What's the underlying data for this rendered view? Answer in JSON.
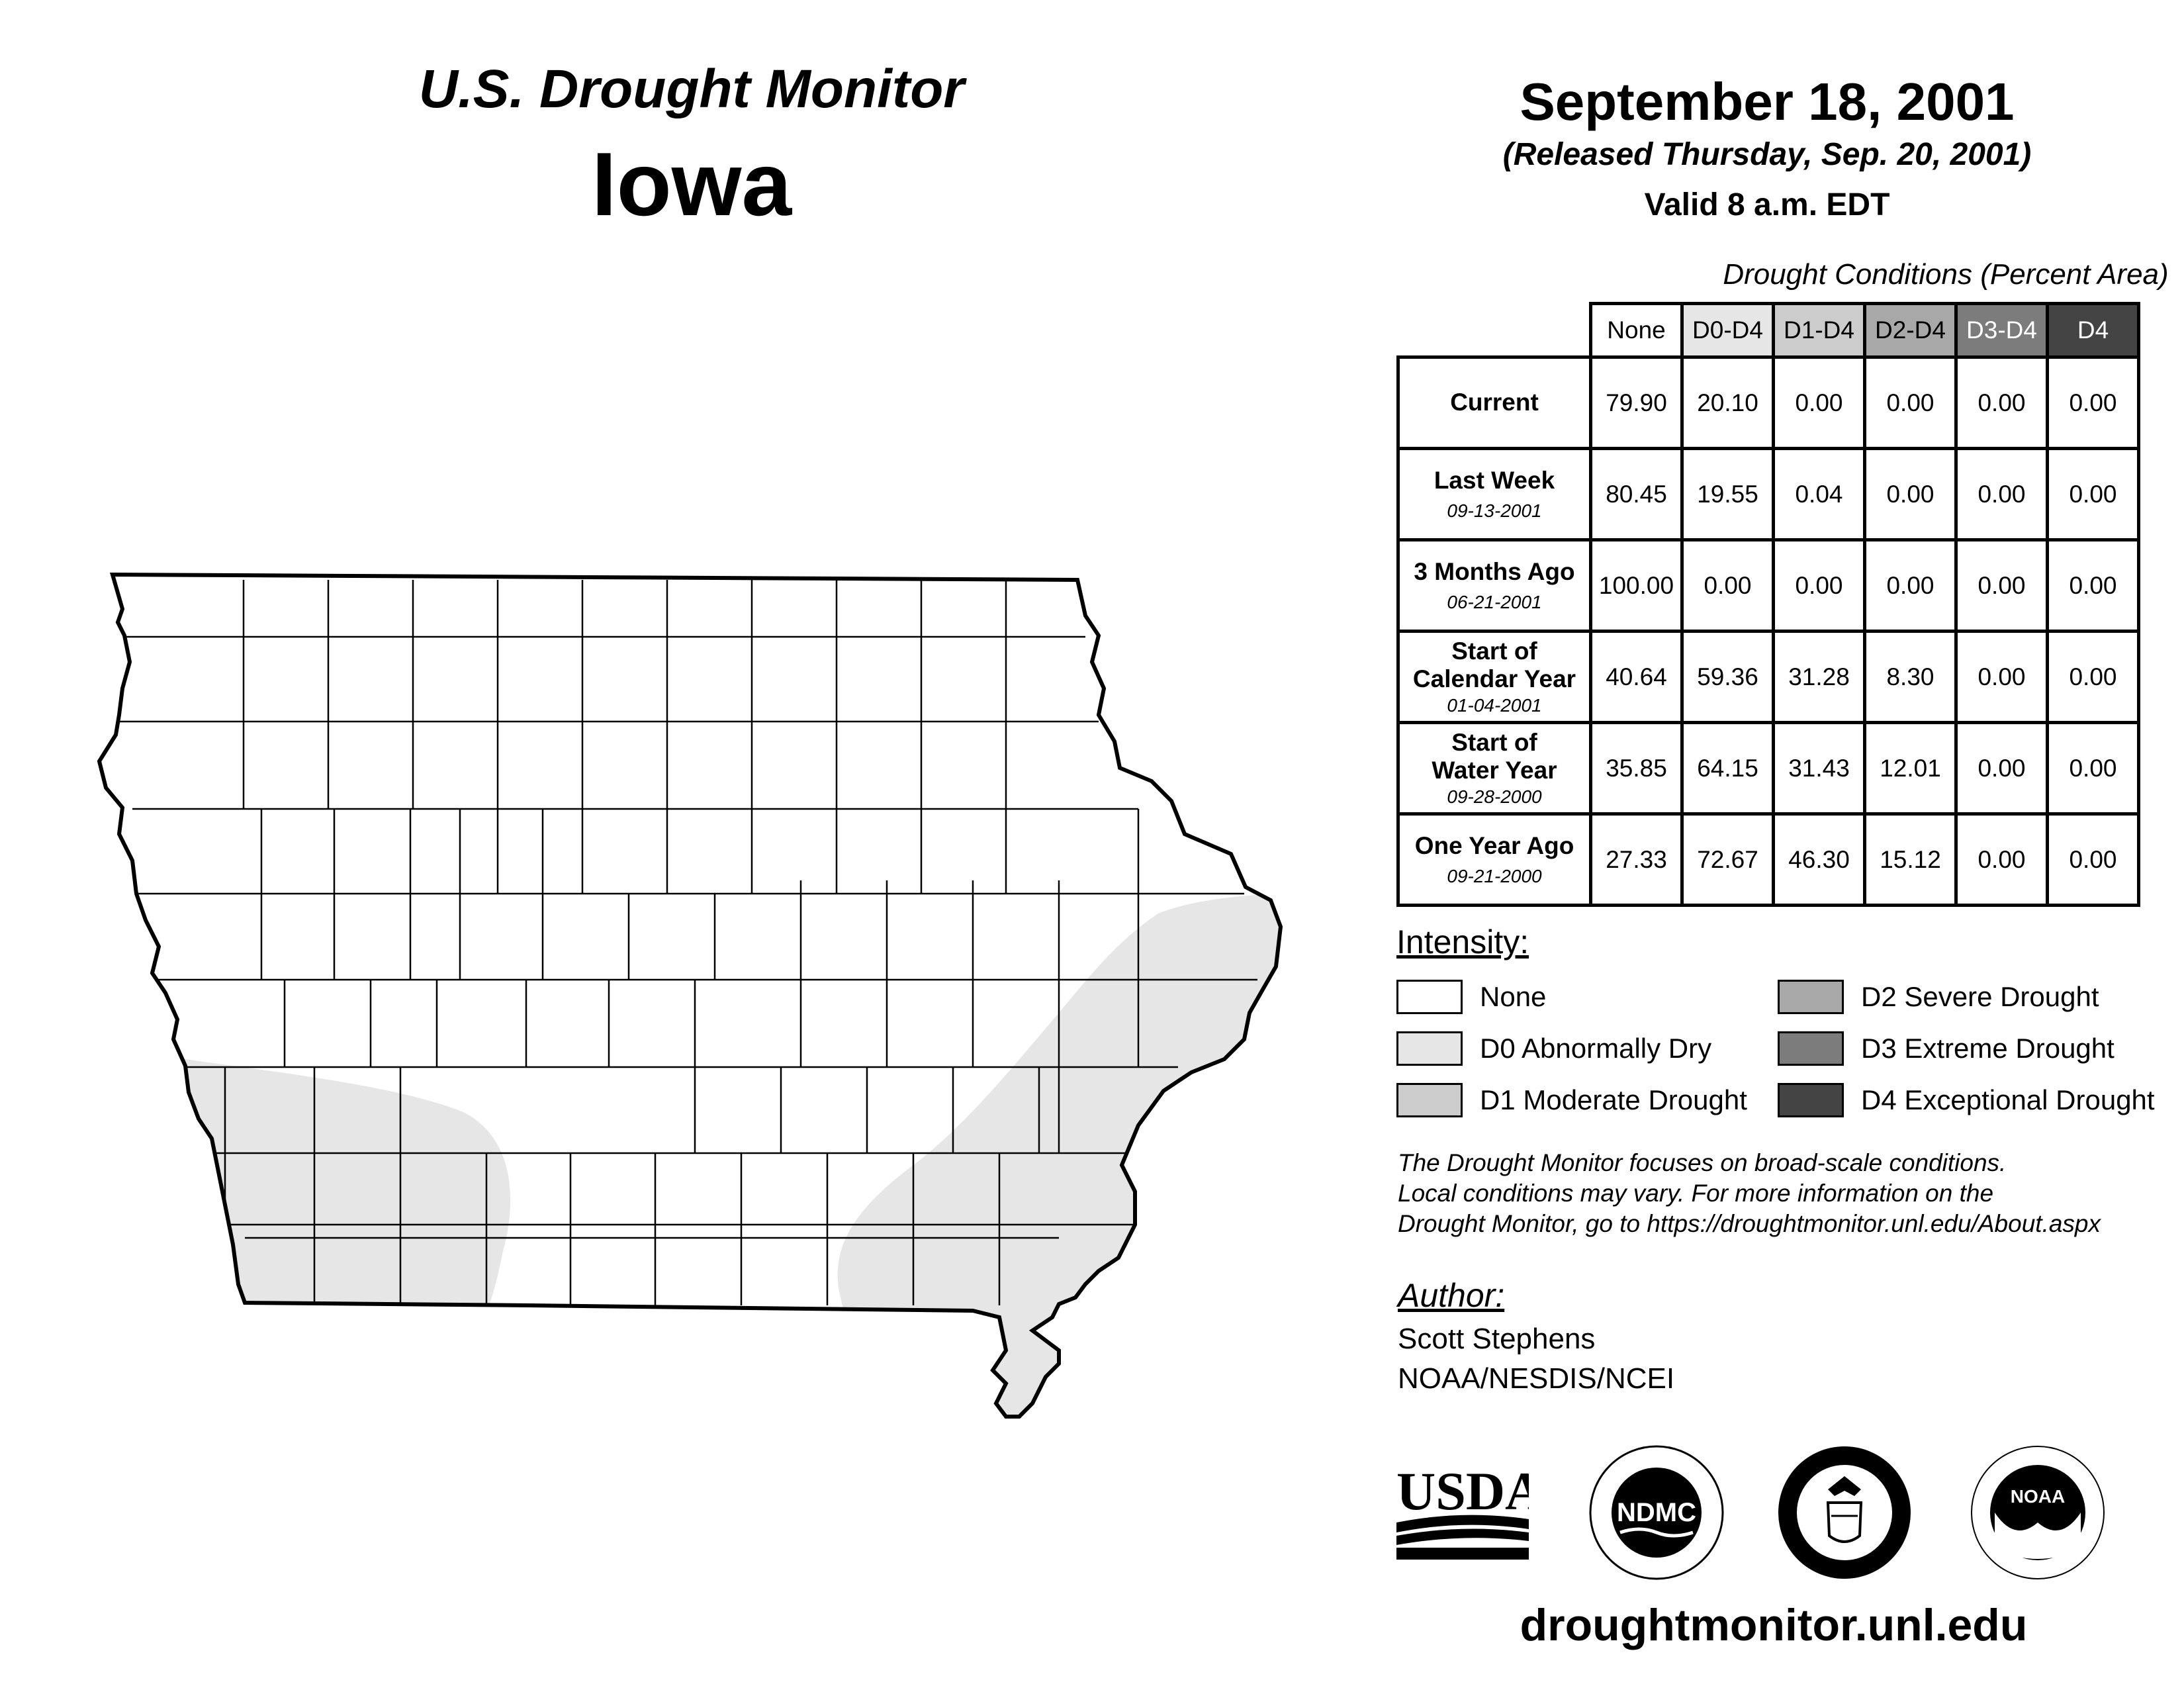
{
  "header": {
    "title": "U.S. Drought Monitor",
    "state": "Iowa"
  },
  "map_info": {
    "date": "September 18, 2001",
    "released": "(Released Thursday, Sep. 20, 2001)",
    "valid": "Valid 8 a.m. EDT"
  },
  "conditions_table": {
    "caption": "Drought Conditions (Percent Area)",
    "columns": [
      {
        "label": "None",
        "color": "#ffffff"
      },
      {
        "label": "D0-D4",
        "color": "#e6e6e6"
      },
      {
        "label": "D1-D4",
        "color": "#cccccc"
      },
      {
        "label": "D2-D4",
        "color": "#a8a8a8"
      },
      {
        "label": "D3-D4",
        "color": "#7c7c7c"
      },
      {
        "label": "D4",
        "color": "#444444"
      }
    ],
    "rows": [
      {
        "label": "Current",
        "date": "",
        "values": [
          "79.90",
          "20.10",
          "0.00",
          "0.00",
          "0.00",
          "0.00"
        ]
      },
      {
        "label": "Last Week",
        "date": "09-13-2001",
        "values": [
          "80.45",
          "19.55",
          "0.04",
          "0.00",
          "0.00",
          "0.00"
        ]
      },
      {
        "label": "3 Months Ago",
        "date": "06-21-2001",
        "values": [
          "100.00",
          "0.00",
          "0.00",
          "0.00",
          "0.00",
          "0.00"
        ]
      },
      {
        "label": "Start of Calendar Year",
        "date": "01-04-2001",
        "values": [
          "40.64",
          "59.36",
          "31.28",
          "8.30",
          "0.00",
          "0.00"
        ]
      },
      {
        "label": "Start of Water Year",
        "date": "09-28-2000",
        "values": [
          "35.85",
          "64.15",
          "31.43",
          "12.01",
          "0.00",
          "0.00"
        ]
      },
      {
        "label": "One Year Ago",
        "date": "09-21-2000",
        "values": [
          "27.33",
          "72.67",
          "46.30",
          "15.12",
          "0.00",
          "0.00"
        ]
      }
    ]
  },
  "legend": {
    "heading": "Intensity:",
    "items": [
      {
        "label": "None",
        "color": "#ffffff"
      },
      {
        "label": "D0 Abnormally Dry",
        "color": "#e6e6e6"
      },
      {
        "label": "D1 Moderate Drought",
        "color": "#cccccc"
      },
      {
        "label": "D2 Severe Drought",
        "color": "#a8a8a8"
      },
      {
        "label": "D3 Extreme Drought",
        "color": "#7c7c7c"
      },
      {
        "label": "D4 Exceptional Drought",
        "color": "#444444"
      }
    ]
  },
  "note": {
    "line1": "The Drought Monitor focuses on broad-scale conditions.",
    "line2": "Local conditions may vary. For more information on the",
    "line3": "Drought Monitor, go to https://droughtmonitor.unl.edu/About.aspx"
  },
  "author": {
    "heading": "Author:",
    "name": "Scott Stephens",
    "org": "NOAA/NESDIS/NCEI"
  },
  "logos": {
    "usda": "USDA",
    "ndmc": "NDMC",
    "noaa": "NOAA"
  },
  "footer": {
    "url": "droughtmonitor.unl.edu"
  }
}
